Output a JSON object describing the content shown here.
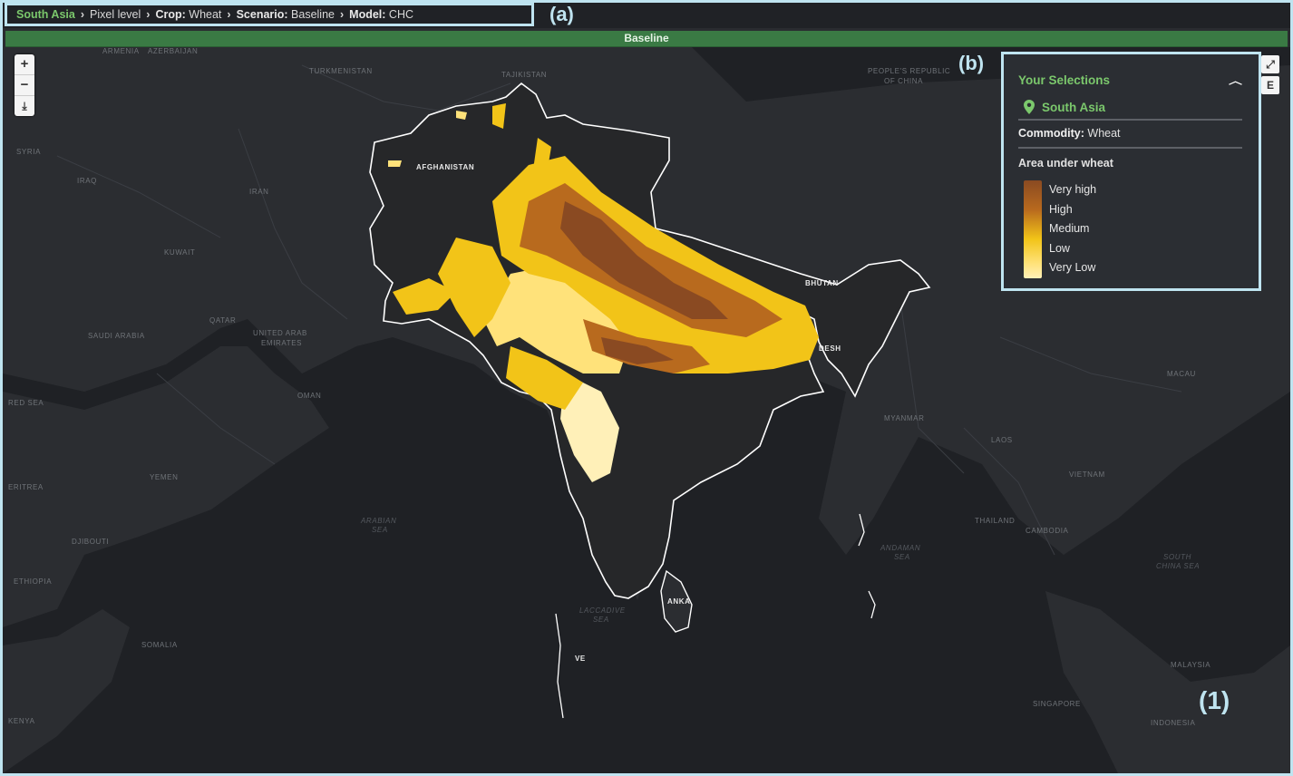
{
  "breadcrumb": {
    "region": "South Asia",
    "level": "Pixel level",
    "crop_prefix": "Crop:",
    "crop": "Wheat",
    "scenario_prefix": "Scenario:",
    "scenario": "Baseline",
    "model_prefix": "Model:",
    "model": "CHC"
  },
  "panel_labels": {
    "a": "(a)",
    "b": "(b)",
    "one": "(1)"
  },
  "scenario_bar": {
    "title": "Baseline"
  },
  "map_controls": {
    "zoom_in": "+",
    "zoom_out": "−",
    "download": "⤓",
    "fullscreen": "⤢",
    "export": "E"
  },
  "legend": {
    "title": "Your Selections",
    "collapse_icon": "chevron-up-icon",
    "region": "South Asia",
    "commodity_label": "Commodity:",
    "commodity_value": "Wheat",
    "area_title": "Area under wheat",
    "classes": [
      "Very high",
      "High",
      "Medium",
      "Low",
      "Very Low"
    ],
    "colors": [
      "#8a4a22",
      "#b86a1e",
      "#f2c418",
      "#ffe27a",
      "#fff0b8"
    ]
  },
  "map_labels": {
    "countries": [
      "TURKMENISTAN",
      "TAJIKISTAN",
      "PEOPLE'S REPUBLIC",
      "OF CHINA",
      "AFGHANISTAN",
      "IRAQ",
      "IRAN",
      "SYRIA",
      "KUWAIT",
      "SAUDI ARABIA",
      "QATAR",
      "UNITED ARAB",
      "EMIRATES",
      "OMAN",
      "YEMEN",
      "DJIBOUTI",
      "ETHIOPIA",
      "SOMALIA",
      "BHUTAN",
      "BANGLADESH",
      "MYANMAR",
      "LAOS",
      "VIETNAM",
      "THAILAND",
      "CAMBODIA",
      "MALAYSIA",
      "SINGAPORE",
      "INDONESIA",
      "MACAU",
      "SRI LANKA",
      "ERITREA",
      "KENYA",
      "ARMENIA",
      "AZERBAIJAN",
      "RED SEA"
    ],
    "seas": [
      "ARABIAN",
      "SEA",
      "ANDAMAN",
      "SEA",
      "SOUTH",
      "CHINA SEA",
      "LACCADIVE",
      "SEA"
    ],
    "inline": [
      "AFGHANISTAN",
      "BHUTAN",
      "DESH",
      "ANKA",
      "VE"
    ]
  }
}
